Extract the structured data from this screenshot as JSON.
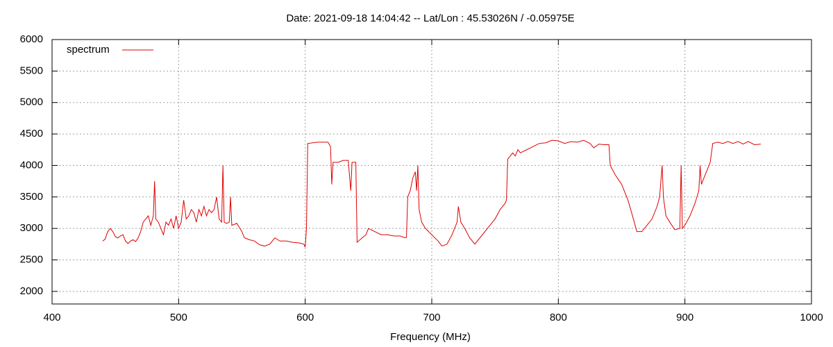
{
  "chart_data": {
    "type": "line",
    "title": "Date: 2021-09-18 14:04:42  --  Lat/Lon : 45.53026N / -0.05975E",
    "xlabel": "Frequency (MHz)",
    "xlim": [
      400,
      1000
    ],
    "xticks": [
      400,
      500,
      600,
      700,
      800,
      900,
      1000
    ],
    "ylim": [
      1800,
      6000
    ],
    "yticks": [
      2000,
      2500,
      3000,
      3500,
      4000,
      4500,
      5000,
      5500,
      6000
    ],
    "grid": true,
    "legend": "top-left",
    "x": [
      440,
      442,
      444,
      446,
      448,
      450,
      452,
      454,
      456,
      458,
      460,
      462,
      464,
      466,
      468,
      470,
      472,
      474,
      476,
      478,
      480,
      481,
      482,
      484,
      486,
      488,
      490,
      492,
      494,
      496,
      498,
      500,
      502,
      504,
      506,
      508,
      510,
      512,
      514,
      516,
      518,
      520,
      522,
      524,
      526,
      528,
      530,
      532,
      534,
      535,
      536,
      538,
      540,
      541,
      542,
      546,
      550,
      552,
      556,
      560,
      564,
      568,
      572,
      576,
      580,
      585,
      590,
      595,
      599,
      600,
      601,
      602,
      610,
      618,
      620,
      621,
      622,
      626,
      630,
      634,
      636,
      637,
      640,
      641,
      645,
      648,
      650,
      655,
      660,
      665,
      670,
      675,
      679,
      680,
      681,
      683,
      685,
      687,
      688,
      689,
      690,
      692,
      695,
      700,
      705,
      708,
      712,
      716,
      718,
      720,
      721,
      723,
      726,
      730,
      734,
      738,
      742,
      746,
      750,
      754,
      758,
      759,
      760,
      762,
      764,
      766,
      768,
      770,
      775,
      780,
      785,
      790,
      795,
      800,
      805,
      810,
      815,
      820,
      825,
      828,
      832,
      836,
      840,
      841,
      845,
      850,
      855,
      860,
      862,
      866,
      870,
      874,
      878,
      880,
      882,
      883,
      885,
      888,
      892,
      896,
      897,
      898,
      900,
      904,
      908,
      911,
      912,
      913,
      916,
      920,
      922,
      926,
      930,
      934,
      938,
      942,
      946,
      950,
      955,
      960
    ],
    "series": [
      {
        "name": "spectrum",
        "color": "#dd0000",
        "values": [
          2800,
          2830,
          2950,
          3000,
          2950,
          2870,
          2850,
          2880,
          2900,
          2800,
          2760,
          2800,
          2820,
          2790,
          2850,
          2950,
          3100,
          3150,
          3200,
          3050,
          3200,
          3750,
          3150,
          3100,
          3000,
          2900,
          3100,
          3050,
          3150,
          3000,
          3200,
          3000,
          3100,
          3450,
          3150,
          3200,
          3300,
          3250,
          3100,
          3300,
          3200,
          3350,
          3200,
          3300,
          3250,
          3300,
          3500,
          3150,
          3100,
          4000,
          3100,
          3080,
          3100,
          3500,
          3050,
          3080,
          2950,
          2850,
          2820,
          2800,
          2740,
          2720,
          2750,
          2850,
          2800,
          2800,
          2780,
          2770,
          2750,
          2700,
          3000,
          4350,
          4370,
          4370,
          4300,
          3700,
          4050,
          4050,
          4080,
          4080,
          3600,
          4050,
          4050,
          2780,
          2850,
          2900,
          3000,
          2950,
          2900,
          2900,
          2880,
          2880,
          2850,
          2860,
          3500,
          3600,
          3800,
          3900,
          3600,
          4000,
          3300,
          3100,
          3000,
          2900,
          2800,
          2720,
          2750,
          2900,
          3000,
          3100,
          3350,
          3100,
          3000,
          2850,
          2750,
          2850,
          2950,
          3050,
          3150,
          3300,
          3400,
          3450,
          4100,
          4150,
          4200,
          4150,
          4250,
          4200,
          4250,
          4300,
          4350,
          4360,
          4400,
          4390,
          4350,
          4380,
          4370,
          4400,
          4350,
          4280,
          4340,
          4330,
          4330,
          4000,
          3850,
          3700,
          3450,
          3100,
          2950,
          2950,
          3050,
          3150,
          3350,
          3500,
          4000,
          3500,
          3200,
          3100,
          2980,
          3000,
          4000,
          3000,
          3050,
          3200,
          3400,
          3600,
          4000,
          3700,
          3850,
          4050,
          4350,
          4370,
          4350,
          4380,
          4350,
          4380,
          4340,
          4380,
          4330,
          4340
        ]
      }
    ]
  }
}
